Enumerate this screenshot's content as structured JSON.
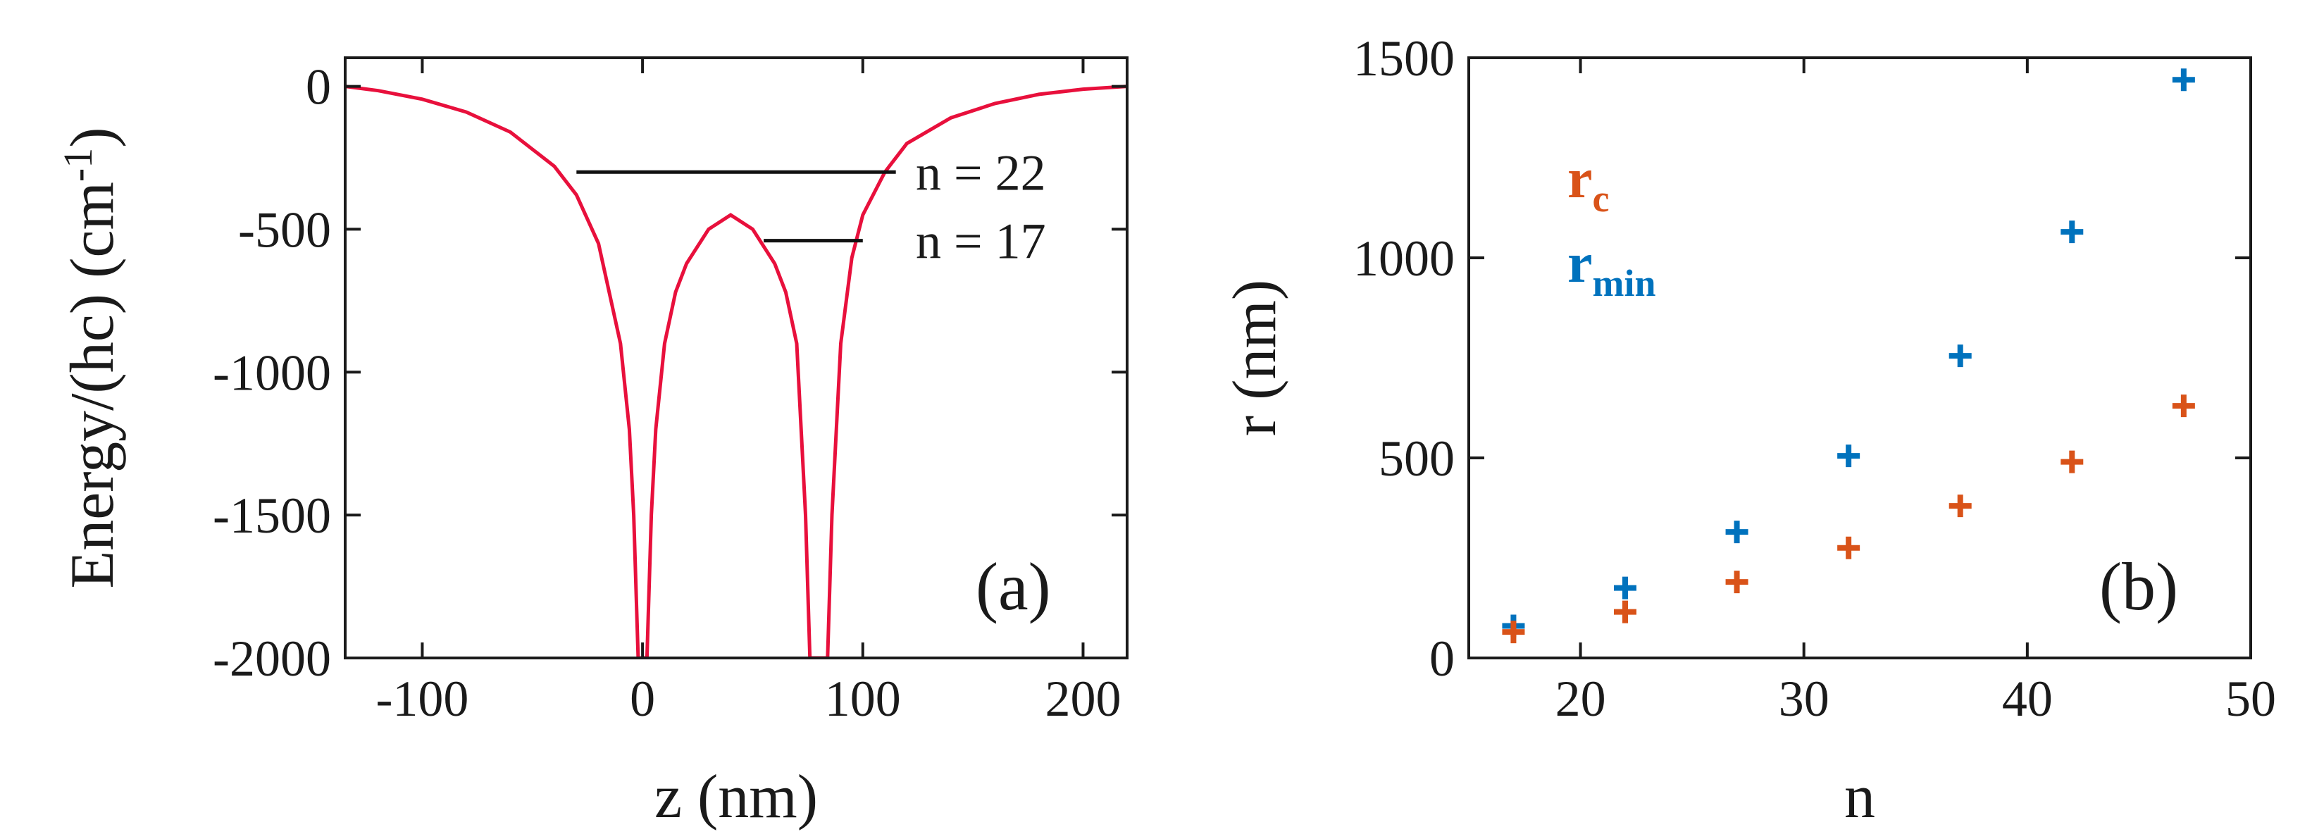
{
  "chart_data": [
    {
      "type": "line",
      "panel_label": "(a)",
      "xlabel": "z (nm)",
      "ylabel": "Energy/(hc) (cm",
      "ylabel_superscript": "-1",
      "ylabel_close": ")",
      "xlim": [
        -135,
        220
      ],
      "ylim": [
        -2000,
        100
      ],
      "xticks": [
        -100,
        0,
        100,
        200
      ],
      "xtick_labels": [
        "-100",
        "0",
        "100",
        "200"
      ],
      "yticks": [
        0,
        -500,
        -1000,
        -1500,
        -2000
      ],
      "ytick_labels": [
        "0",
        "-500",
        "-1000",
        "-1500",
        "-2000"
      ],
      "potential_color": "#e8103c",
      "series": [
        {
          "name": "potential",
          "x": [
            -135,
            -120,
            -100,
            -80,
            -60,
            -40,
            -30,
            -20,
            -10,
            -6,
            -4,
            -2,
            2,
            4,
            6,
            10,
            15,
            20,
            30,
            40,
            50,
            60,
            65,
            70,
            74,
            76,
            78,
            82,
            84,
            86,
            90,
            95,
            100,
            110,
            120,
            140,
            160,
            180,
            200,
            220
          ],
          "y": [
            0,
            -15,
            -45,
            -90,
            -160,
            -280,
            -380,
            -550,
            -900,
            -1200,
            -1500,
            -2000,
            -2000,
            -1500,
            -1200,
            -900,
            -720,
            -620,
            -500,
            -450,
            -500,
            -620,
            -720,
            -900,
            -1500,
            -2000,
            -2000,
            -2000,
            -2000,
            -1500,
            -900,
            -600,
            -450,
            -300,
            -200,
            -110,
            -60,
            -28,
            -10,
            0
          ]
        }
      ],
      "levels": [
        {
          "label": "n = 22",
          "energy": -300,
          "x_start": -30,
          "x_end": 115
        },
        {
          "label": "n = 17",
          "energy": -540,
          "x_start": 55,
          "x_end": 100
        }
      ]
    },
    {
      "type": "scatter",
      "panel_label": "(b)",
      "xlabel": "n",
      "ylabel": "r (nm)",
      "xlim": [
        15,
        50
      ],
      "ylim": [
        0,
        1500
      ],
      "xticks": [
        20,
        30,
        40,
        50
      ],
      "xtick_labels": [
        "20",
        "30",
        "40",
        "50"
      ],
      "yticks": [
        0,
        500,
        1000,
        1500
      ],
      "ytick_labels": [
        "0",
        "500",
        "1000",
        "1500"
      ],
      "series": [
        {
          "name": "r",
          "subscript": "c",
          "color": "#d95319",
          "x": [
            17,
            22,
            27,
            32,
            37,
            42,
            47
          ],
          "y": [
            65,
            115,
            190,
            275,
            380,
            490,
            630
          ]
        },
        {
          "name": "r",
          "subscript": "min",
          "color": "#0072bd",
          "x": [
            17,
            22,
            27,
            32,
            37,
            42,
            47
          ],
          "y": [
            80,
            175,
            315,
            505,
            755,
            1065,
            1445
          ]
        }
      ]
    }
  ]
}
